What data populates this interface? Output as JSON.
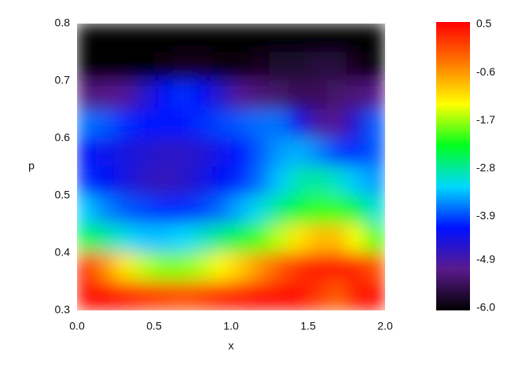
{
  "chart_data": {
    "type": "heatmap",
    "xlabel": "x",
    "ylabel": "p",
    "xlim": [
      0,
      2
    ],
    "ylim": [
      0.3,
      0.8
    ],
    "xticks": [
      {
        "value": 0,
        "label": "0.0"
      },
      0.5,
      {
        "value": 1,
        "label": "1.0"
      },
      1.5,
      {
        "value": 2,
        "label": "2.0"
      }
    ],
    "yticks": [
      0.3,
      0.4,
      0.5,
      0.6,
      0.7,
      0.8
    ],
    "z": [
      [
        -6,
        -6,
        -6,
        -6,
        -6,
        -6,
        -6,
        -6,
        -6,
        -6,
        -6,
        -6,
        -6,
        -6,
        -6,
        -6
      ],
      [
        -6,
        -6,
        -6,
        -6,
        -5.9,
        -5.8,
        -5.8,
        -5.9,
        -5.9,
        -5.8,
        -5.7,
        -5.7,
        -5.6,
        -5.6,
        -5.8,
        -6
      ],
      [
        -5.2,
        -5.1,
        -5.0,
        -4.6,
        -4.2,
        -4.0,
        -4.2,
        -4.6,
        -5.0,
        -5.2,
        -5.3,
        -5.4,
        -5.4,
        -5.3,
        -5.2,
        -5.1
      ],
      [
        -3.7,
        -3.8,
        -4.0,
        -4.1,
        -4.1,
        -4.1,
        -4.0,
        -3.9,
        -3.8,
        -3.7,
        -3.7,
        -4.3,
        -4.9,
        -5.0,
        -4.5,
        -3.8
      ],
      [
        -4.2,
        -4.3,
        -4.4,
        -4.5,
        -4.6,
        -4.6,
        -4.5,
        -4.3,
        -4.1,
        -3.8,
        -3.5,
        -3.4,
        -3.6,
        -3.9,
        -4.0,
        -3.8
      ],
      [
        -4.0,
        -4.2,
        -4.4,
        -4.6,
        -4.7,
        -4.6,
        -4.4,
        -4.2,
        -4.0,
        -3.7,
        -3.3,
        -2.9,
        -2.8,
        -3.0,
        -3.3,
        -3.5
      ],
      [
        -3.3,
        -3.6,
        -3.8,
        -3.9,
        -4.0,
        -4.0,
        -3.9,
        -3.7,
        -3.4,
        -3.1,
        -2.7,
        -2.4,
        -2.1,
        -2.1,
        -2.5,
        -3.0
      ],
      [
        -2.5,
        -2.8,
        -3.1,
        -3.3,
        -3.3,
        -3.2,
        -3.0,
        -2.7,
        -2.4,
        -2.0,
        -1.6,
        -1.2,
        -0.9,
        -0.9,
        -1.4,
        -2.0
      ],
      [
        0.2,
        -0.6,
        -1.2,
        -1.6,
        -1.8,
        -1.8,
        -1.6,
        -1.3,
        -1.0,
        -0.6,
        -0.2,
        0.1,
        0.3,
        0.3,
        0.2,
        -0.1
      ],
      [
        0.4,
        0.4,
        0.3,
        0.1,
        0,
        -0.1,
        0,
        0.2,
        0.3,
        0.4,
        0.4,
        0.4,
        0.1,
        -0.2,
        0.3,
        0.4
      ]
    ],
    "colormap": [
      "#000000",
      "#5a1a8c",
      "#0010ff",
      "#00d8ff",
      "#00ff20",
      "#ffff00",
      "#ff7a00",
      "#ff0000"
    ],
    "clim": [
      -6,
      0.5
    ],
    "cticks": [
      {
        "value": -6,
        "label": "-6.0"
      },
      -4.9,
      -3.9,
      -2.8,
      -1.7,
      -0.6,
      0.5
    ]
  }
}
